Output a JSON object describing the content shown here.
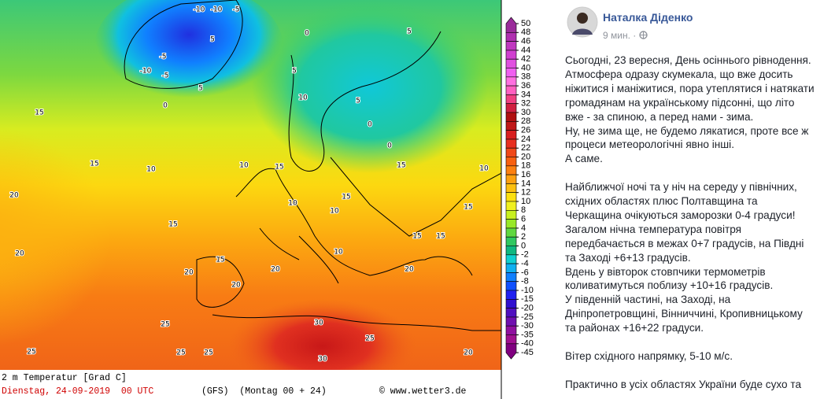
{
  "map": {
    "labels": [
      -10,
      -10,
      -5,
      -5,
      -5,
      -10,
      5,
      5,
      0,
      5,
      10,
      5,
      0,
      0,
      0,
      5,
      15,
      10,
      15,
      10,
      15,
      15,
      10,
      10,
      15,
      20,
      20,
      20,
      20,
      15,
      15,
      15,
      20,
      25,
      30,
      25,
      25,
      20,
      30,
      25,
      10,
      15,
      20,
      25,
      15,
      10
    ],
    "caption_title": "2 m Temperatur [Grad C]",
    "caption_date": "Dienstag, 24-09-2019  00 UTC",
    "caption_model": "(GFS)  (Montag 00 + 24)",
    "caption_source": "© www.wetter3.de"
  },
  "colorbar": {
    "labels": [
      50,
      48,
      46,
      44,
      42,
      40,
      38,
      36,
      34,
      32,
      30,
      28,
      26,
      24,
      22,
      20,
      18,
      16,
      14,
      12,
      10,
      8,
      6,
      4,
      2,
      0,
      -2,
      -4,
      -6,
      -8,
      -10,
      -15,
      -20,
      -25,
      -30,
      -35,
      -40,
      -45
    ],
    "colors": [
      "#9a2c9a",
      "#b030b0",
      "#c038c0",
      "#d040d0",
      "#e050e0",
      "#f060f0",
      "#ff70e0",
      "#ff60c0",
      "#f04080",
      "#d02040",
      "#b01010",
      "#c01818",
      "#d82020",
      "#e83020",
      "#f04818",
      "#f86010",
      "#fc8010",
      "#fca010",
      "#fcc010",
      "#fce010",
      "#f0f020",
      "#c8f020",
      "#98e828",
      "#60d840",
      "#30c860",
      "#10b880",
      "#10d0d0",
      "#10b0f0",
      "#1080ff",
      "#1050ff",
      "#2020f0",
      "#3010d0",
      "#5010c0",
      "#7010b0",
      "#9010a0",
      "#a01090",
      "#800080"
    ]
  },
  "post": {
    "author": "Наталка Діденко",
    "time": "9 мин. ·",
    "paragraphs": [
      [
        "Сьогодні, 23 вересня, День осіннього рівнодення.",
        "Атмосфера одразу скумекала, що вже досить",
        "ніжитися і маніжитися, пора утеплятися і натякати",
        "громадянам на українському підсонні, що літо",
        "вже - за спиною, а перед нами - зима.",
        "Ну, не зима ще, не будемо лякатися, проте все ж",
        "процеси метеорологічні явно інші.",
        "А саме."
      ],
      [
        "Найближчої ночі та у ніч на середу у північних,",
        "східних областях плюс Полтавщина та",
        "Черкащина очікуються заморозки 0-4 градуси!",
        "Загалом нічна температура повітря",
        "передбачається в межах 0+7 градусів, на Півдні",
        "та Заході +6+13 градусів.",
        "Вдень у вівторок стовпчики термометрів",
        "коливатимуться поблизу +10+16 градусів.",
        "У південній частині, на Заході, на",
        "Дніпропетровщині, Вінниччині, Кропивницькому",
        "та районах +16+22 градуси."
      ],
      [
        "Вітер східного напрямку, 5-10 м/с."
      ],
      [
        "Практично в усіх областях України буде сухо та"
      ]
    ]
  }
}
